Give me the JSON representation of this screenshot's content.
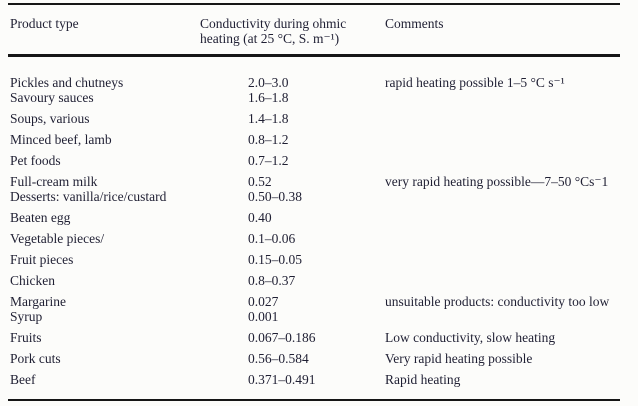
{
  "colors": {
    "ink": "#1f1f33",
    "rule": "#161616",
    "background": "#fcfcfa"
  },
  "table": {
    "header": {
      "col1": "Product type",
      "col2": "Conductivity during ohmic\nheating (at 25 °C, S. m⁻¹)",
      "col3": "Comments"
    },
    "rows": [
      {
        "product": "Pickles and chutneys",
        "value": "2.0–3.0",
        "comment": "rapid heating possible 1–5 °C s⁻¹"
      },
      {
        "product": "Savoury sauces",
        "value": "1.6–1.8",
        "comment": ""
      },
      {
        "product": "Soups, various",
        "value": "1.4–1.8",
        "comment": ""
      },
      {
        "product": "Minced beef, lamb",
        "value": "0.8–1.2",
        "comment": ""
      },
      {
        "product": "Pet foods",
        "value": "0.7–1.2",
        "comment": ""
      },
      {
        "product": "Full-cream milk",
        "value": "0.52",
        "comment": "very rapid heating possible—7–50 °Cs⁻1"
      },
      {
        "product": "Desserts: vanilla/rice/custard",
        "value": "0.50–0.38",
        "comment": ""
      },
      {
        "product": "Beaten egg",
        "value": "0.40",
        "comment": ""
      },
      {
        "product": "Vegetable pieces/",
        "value": "0.1–0.06",
        "comment": ""
      },
      {
        "product": "Fruit pieces",
        "value": "0.15–0.05",
        "comment": ""
      },
      {
        "product": "Chicken",
        "value": "0.8–0.37",
        "comment": ""
      },
      {
        "product": "Margarine",
        "value": "0.027",
        "comment": "unsuitable products: conductivity too low"
      },
      {
        "product": "Syrup",
        "value": "0.001",
        "comment": ""
      },
      {
        "product": "Fruits",
        "value": "0.067–0.186",
        "comment": "Low conductivity, slow heating"
      },
      {
        "product": "Pork cuts",
        "value": "0.56–0.584",
        "comment": "Very rapid heating possible"
      },
      {
        "product": "Beef",
        "value": "0.371–0.491",
        "comment": "Rapid heating"
      }
    ]
  }
}
